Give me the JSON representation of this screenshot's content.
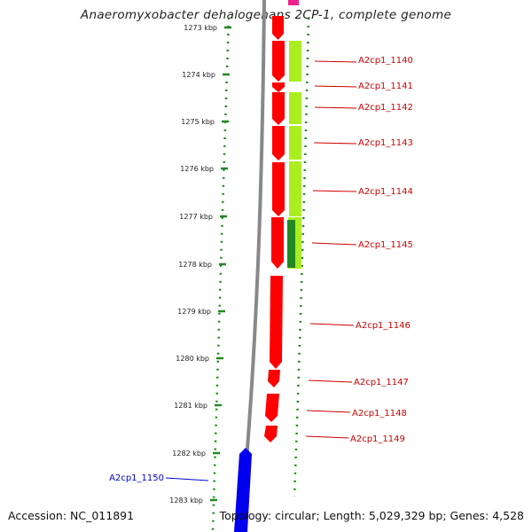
{
  "title": "Anaeromyxobacter dehalogenans 2CP-1, complete genome",
  "footer": {
    "accession": "Accession: NC_011891",
    "summary": "Topology: circular; Length: 5,029,329 bp; Genes: 4,528"
  },
  "ruler": [
    {
      "label": "1273 kbp",
      "kbp": 1273
    },
    {
      "label": "1274 kbp",
      "kbp": 1274
    },
    {
      "label": "1275 kbp",
      "kbp": 1275
    },
    {
      "label": "1276 kbp",
      "kbp": 1276
    },
    {
      "label": "1277 kbp",
      "kbp": 1277
    },
    {
      "label": "1278 kbp",
      "kbp": 1278
    },
    {
      "label": "1279 kbp",
      "kbp": 1279
    },
    {
      "label": "1280 kbp",
      "kbp": 1280
    },
    {
      "label": "1281 kbp",
      "kbp": 1281
    },
    {
      "label": "1282 kbp",
      "kbp": 1282
    },
    {
      "label": "1283 kbp",
      "kbp": 1283
    }
  ],
  "genes": [
    {
      "label": "A2cp1_1140",
      "color": "#cc0000"
    },
    {
      "label": "A2cp1_1141",
      "color": "#cc0000"
    },
    {
      "label": "A2cp1_1142",
      "color": "#cc0000"
    },
    {
      "label": "A2cp1_1143",
      "color": "#cc0000"
    },
    {
      "label": "A2cp1_1144",
      "color": "#cc0000"
    },
    {
      "label": "A2cp1_1145",
      "color": "#cc0000"
    },
    {
      "label": "A2cp1_1146",
      "color": "#cc0000"
    },
    {
      "label": "A2cp1_1147",
      "color": "#cc0000"
    },
    {
      "label": "A2cp1_1148",
      "color": "#cc0000"
    },
    {
      "label": "A2cp1_1149",
      "color": "#cc0000"
    },
    {
      "label": "A2cp1_1150",
      "color": "#0000cc"
    }
  ],
  "colors": {
    "forward_cds": "#ff0000",
    "reverse_cds": "#0000ff",
    "cog_light": "#aaee22",
    "cog_dark": "#228822",
    "backbone": "#888888",
    "ruler": "#228822",
    "top_feature": "#ee2288"
  }
}
